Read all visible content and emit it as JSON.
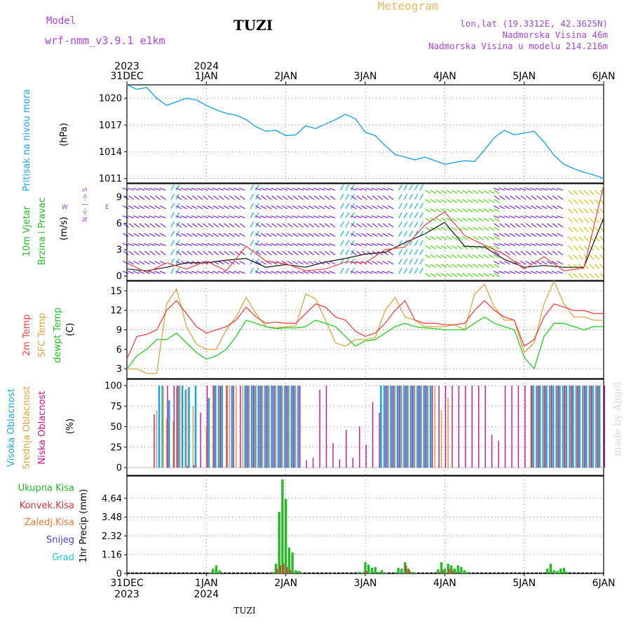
{
  "header": {
    "model_label": "Model",
    "model_name": "wrf-nmm_v3.9.1  e1km",
    "station": "TUZI",
    "meteogram": "Meteogram",
    "lonlat": "lon,lat (19.3312E, 42.3625N)",
    "altitude": "Nadmorska Visina 46m",
    "model_altitude": "Nadmorska Visina u modelu 214.216m",
    "footer_station": "TUZI",
    "watermark": "made by Angel"
  },
  "colors": {
    "pressure": "#1fa3e6",
    "temp2m": "#ee4444",
    "sfc": "#d9a640",
    "dewpt": "#22cc22",
    "high_cloud": "#1fa3e6",
    "mid_cloud": "#d9a640",
    "low_cloud": "#cc1188",
    "precip_total": "#22bb22",
    "precip_conv": "#dd3333",
    "freezing": "#ee7733",
    "snow": "#4444dd",
    "graupel": "#22cccc",
    "header_purple": "#aa44dd",
    "header_orange": "#e8b860"
  },
  "time_axis": {
    "top_labels": [
      {
        "day": "31DEC",
        "year": "2023",
        "t": 0
      },
      {
        "day": "1JAN",
        "year": "2024",
        "t": 24
      },
      {
        "day": "2JAN",
        "year": "",
        "t": 48
      },
      {
        "day": "3JAN",
        "year": "",
        "t": 72
      },
      {
        "day": "4JAN",
        "year": "",
        "t": 96
      },
      {
        "day": "5JAN",
        "year": "",
        "t": 120
      },
      {
        "day": "6JAN",
        "year": "",
        "t": 144
      }
    ],
    "range_hours": [
      0,
      144
    ]
  },
  "panels": {
    "pressure": {
      "ylabel": "Pritisak na nivou mora",
      "unit": "(hPa)",
      "ticks": [
        "1011",
        "1014",
        "1017",
        "1020"
      ]
    },
    "wind": {
      "ylabel1": "10m Vjetar",
      "ylabel2": "Brzina i Pravac",
      "unit": "(m/s)",
      "ticks": [
        "0",
        "3",
        "6",
        "9"
      ],
      "compass_ns": "N <- | -> S",
      "compass_w": "W",
      "compass_e": "E"
    },
    "temp": {
      "label1": "2m Temp",
      "label2": "SFC Temp",
      "label3": "dewpt Temp",
      "unit": "(C)",
      "ticks": [
        "3",
        "6",
        "9",
        "12",
        "15"
      ]
    },
    "cloud": {
      "label1": "Visoka Oblacnost",
      "label2": "Srednja Oblacnost",
      "label3": "Niska Oblacnost",
      "unit": "(%)",
      "ticks": [
        "0",
        "25",
        "50",
        "75",
        "100"
      ]
    },
    "precip": {
      "legend": [
        "Ukupna Kisa",
        "Konvek.Kisa",
        "Zaledj.Kisa",
        "Snijeg",
        "Grad"
      ],
      "ylabel": "1hr Precip (mm)",
      "ticks": [
        "0",
        "1.16",
        "2.32",
        "3.48",
        "4.64"
      ]
    }
  },
  "chart_data": [
    {
      "type": "line",
      "title": "Pritisak na nivou mora",
      "ylabel": "(hPa)",
      "ylim": [
        1010.5,
        1021.5
      ],
      "x_hours": [
        0,
        3,
        6,
        9,
        12,
        15,
        18,
        21,
        24,
        27,
        30,
        33,
        36,
        39,
        42,
        45,
        48,
        51,
        54,
        57,
        60,
        63,
        66,
        69,
        72,
        75,
        78,
        81,
        84,
        87,
        90,
        93,
        96,
        99,
        102,
        105,
        108,
        111,
        114,
        117,
        120,
        123,
        126,
        129,
        132,
        135,
        138,
        141,
        144
      ],
      "series": [
        {
          "values": [
            1021.5,
            1021,
            1021.2,
            1020,
            1019.2,
            1019.6,
            1020,
            1019.8,
            1019.2,
            1018.7,
            1018.3,
            1018.1,
            1017.6,
            1016.8,
            1016.3,
            1016.4,
            1015.8,
            1015.9,
            1016.9,
            1016.6,
            1017.1,
            1017.6,
            1018.2,
            1017.7,
            1016.2,
            1015.8,
            1014.7,
            1013.7,
            1013.4,
            1013.1,
            1013.4,
            1013,
            1012.6,
            1012.8,
            1013,
            1012.9,
            1014.2,
            1015.6,
            1016.4,
            1015.9,
            1016.1,
            1016.3,
            1015.1,
            1013.6,
            1012.6,
            1012.1,
            1011.7,
            1011.4,
            1011
          ]
        }
      ]
    },
    {
      "type": "line",
      "title": "10m Vjetar Brzina i Pravac",
      "ylabel": "(m/s)",
      "ylim": [
        -0.5,
        10.5
      ],
      "x_hours": [
        0,
        6,
        12,
        18,
        24,
        30,
        36,
        42,
        48,
        54,
        60,
        66,
        72,
        78,
        84,
        90,
        96,
        102,
        108,
        114,
        120,
        126,
        132,
        138,
        144
      ],
      "series": [
        {
          "values": [
            0.8,
            0.6,
            1.0,
            1.5,
            1.5,
            1.8,
            2.0,
            1.0,
            1.3,
            1.0,
            1.6,
            2.0,
            2.5,
            2.7,
            3.8,
            4.8,
            6.1,
            3.4,
            3.3,
            1.9,
            1.0,
            1.2,
            1.0,
            1.0,
            6.6
          ]
        },
        {
          "values": [
            1.5,
            0.4,
            1.5,
            0.8,
            1.7,
            0.6,
            3.4,
            1.7,
            1.4,
            0.6,
            0.8,
            1.6,
            1.5,
            3.0,
            3.3,
            5.8,
            7.3,
            4.6,
            3.5,
            2.5,
            0.8,
            2.2,
            0.6,
            0.9,
            10.3
          ]
        }
      ]
    },
    {
      "type": "line",
      "title": "Temperature",
      "ylabel": "(C)",
      "ylim": [
        1.5,
        16.5
      ],
      "x_hours": [
        0,
        3,
        6,
        9,
        12,
        15,
        18,
        21,
        24,
        27,
        30,
        33,
        36,
        39,
        42,
        45,
        48,
        51,
        54,
        57,
        60,
        63,
        66,
        69,
        72,
        75,
        78,
        81,
        84,
        87,
        90,
        93,
        96,
        99,
        102,
        105,
        108,
        111,
        114,
        117,
        120,
        123,
        126,
        129,
        132,
        135,
        138,
        141,
        144
      ],
      "series": [
        {
          "name": "2m Temp",
          "values": [
            4.5,
            8,
            8.3,
            9,
            12,
            13.5,
            11.5,
            9.5,
            8.5,
            9,
            9.5,
            10.5,
            12.5,
            11,
            10,
            10.2,
            10,
            10,
            11.5,
            13,
            12.5,
            11,
            10.5,
            8.8,
            8,
            8.5,
            10,
            12,
            13.5,
            10.5,
            10,
            10,
            9.8,
            9.8,
            10,
            12,
            13.5,
            12,
            11,
            10.5,
            6.5,
            7.5,
            11,
            13,
            12.5,
            12,
            12,
            11.5,
            11.5
          ]
        },
        {
          "name": "SFC Temp",
          "values": [
            3,
            3,
            2.3,
            2.3,
            13,
            15.3,
            9.5,
            6.8,
            6,
            6,
            9,
            11,
            14,
            11.5,
            9.5,
            9.3,
            9.5,
            9.6,
            14.5,
            13.8,
            10.5,
            7,
            6.5,
            7.5,
            7.5,
            7.8,
            12,
            14,
            11,
            10.5,
            9.5,
            9.5,
            9.5,
            9.8,
            9,
            14.5,
            16,
            12.5,
            10.5,
            10.5,
            5.5,
            7,
            13,
            16.5,
            13,
            11,
            11,
            10.5,
            10.5
          ]
        },
        {
          "name": "dewpt Temp",
          "values": [
            3,
            5,
            6,
            7.5,
            7.5,
            8.5,
            7,
            5.5,
            4.5,
            5,
            6,
            8,
            10.5,
            10,
            9.5,
            9.2,
            9.3,
            9.3,
            9.5,
            10.5,
            10,
            9.5,
            8,
            6.5,
            7.3,
            7.5,
            8.5,
            9.5,
            10,
            9.5,
            9.3,
            9.2,
            9,
            9,
            9,
            10,
            11,
            10,
            9.5,
            9,
            4.8,
            3,
            8,
            10,
            10,
            9.5,
            9,
            9.5,
            9.5
          ]
        }
      ]
    },
    {
      "type": "bar",
      "title": "Oblacnost",
      "ylabel": "(%)",
      "ylim": [
        0,
        100
      ],
      "series": [
        {
          "name": "Visoka Oblacnost",
          "x_hours": [
            10,
            11,
            13,
            16,
            17,
            18,
            19,
            21,
            25,
            27,
            28,
            29,
            32,
            36,
            37,
            38,
            39,
            40,
            41,
            42,
            43,
            44,
            45,
            46,
            47,
            48,
            49,
            50,
            51,
            52,
            77,
            78,
            79,
            80,
            81,
            82,
            83,
            84,
            85,
            86,
            87,
            88,
            89,
            90,
            91,
            92,
            123,
            124,
            125,
            126,
            127,
            128,
            129,
            130,
            131,
            132,
            133,
            134,
            135,
            136,
            137,
            138,
            139,
            140,
            141,
            142,
            143
          ],
          "values": [
            100,
            100,
            82,
            100,
            100,
            95,
            98,
            100,
            85,
            100,
            100,
            100,
            100,
            100,
            100,
            100,
            100,
            100,
            100,
            100,
            100,
            100,
            100,
            100,
            100,
            100,
            100,
            100,
            100,
            100,
            100,
            100,
            100,
            100,
            100,
            100,
            100,
            100,
            100,
            100,
            100,
            100,
            100,
            100,
            100,
            100,
            100,
            100,
            100,
            100,
            100,
            100,
            100,
            100,
            100,
            100,
            100,
            100,
            100,
            100,
            100,
            100,
            100,
            100,
            100,
            100,
            100
          ]
        },
        {
          "name": "Srednja Oblacnost",
          "x_hours": [
            9,
            11,
            12,
            14,
            15,
            16,
            18,
            20,
            24,
            26,
            28,
            30,
            31,
            33,
            35,
            37,
            39,
            41,
            43,
            45,
            47,
            49,
            51,
            53,
            79,
            81,
            83,
            85,
            87,
            89,
            91,
            93,
            95,
            97,
            122,
            124,
            126,
            128,
            130,
            132,
            134,
            136,
            138,
            140,
            142
          ],
          "values": [
            70,
            100,
            60,
            57,
            98,
            100,
            96,
            75,
            50,
            100,
            100,
            100,
            100,
            100,
            100,
            100,
            100,
            100,
            100,
            100,
            100,
            100,
            100,
            0,
            100,
            100,
            100,
            100,
            100,
            100,
            100,
            100,
            70,
            85,
            100,
            100,
            100,
            100,
            100,
            100,
            100,
            100,
            100,
            100,
            100
          ]
        },
        {
          "name": "Niska Oblacnost",
          "x_hours": [
            8,
            12,
            14,
            15,
            18,
            20,
            22,
            24,
            26,
            28,
            30,
            32,
            34,
            36,
            38,
            40,
            42,
            44,
            46,
            48,
            50,
            52,
            54,
            56,
            58,
            60,
            62,
            64,
            66,
            68,
            70,
            72,
            74,
            76,
            78,
            80,
            82,
            84,
            86,
            88,
            90,
            92,
            94,
            96,
            98,
            100,
            102,
            104,
            106,
            108,
            110,
            112,
            114,
            116,
            118,
            120,
            122,
            124,
            126,
            128,
            130,
            132,
            134,
            136,
            138,
            140,
            142,
            144
          ],
          "values": [
            65,
            100,
            100,
            100,
            2,
            3,
            67,
            100,
            100,
            100,
            100,
            100,
            100,
            100,
            100,
            100,
            100,
            100,
            100,
            100,
            100,
            100,
            9,
            12,
            95,
            100,
            30,
            10,
            46,
            12,
            50,
            28,
            80,
            67,
            100,
            100,
            100,
            100,
            100,
            100,
            100,
            100,
            100,
            100,
            100,
            100,
            100,
            100,
            100,
            100,
            40,
            33,
            100,
            100,
            100,
            100,
            100,
            100,
            100,
            100,
            100,
            100,
            100,
            100,
            100,
            100,
            100,
            100
          ]
        }
      ]
    },
    {
      "type": "bar",
      "title": "1hr Precip (mm)",
      "ylabel": "1hr Precip (mm)",
      "ylim": [
        0,
        5.8
      ],
      "series": [
        {
          "name": "Ukupna Kisa",
          "x_hours": [
            25,
            26,
            27,
            28,
            44,
            45,
            46,
            47,
            48,
            49,
            50,
            51,
            52,
            53,
            62,
            70,
            71,
            72,
            73,
            74,
            75,
            76,
            77,
            78,
            82,
            83,
            84,
            85,
            86,
            87,
            94,
            95,
            96,
            97,
            98,
            99,
            100,
            101,
            102,
            103,
            127,
            128,
            129,
            130,
            131,
            132,
            133,
            143
          ],
          "values": [
            0.05,
            0.3,
            0.5,
            0.2,
            0.1,
            0.6,
            3.8,
            5.8,
            4.6,
            1.6,
            1.3,
            0.2,
            0.15,
            0.05,
            0.05,
            0.1,
            0.05,
            0.7,
            0.55,
            0.35,
            0.4,
            0.1,
            0.2,
            0.05,
            0.35,
            0.3,
            0.7,
            0.3,
            0.1,
            0.05,
            0.25,
            0.7,
            0.3,
            0.6,
            0.5,
            0.3,
            0.5,
            0.4,
            0.2,
            0.1,
            0.3,
            0.6,
            0.2,
            0.15,
            0.3,
            0.35,
            0.1,
            0.05
          ]
        },
        {
          "name": "Konvek.Kisa",
          "x_hours": [
            45,
            46,
            47,
            48,
            49,
            72,
            84,
            85,
            95,
            97,
            98
          ],
          "values": [
            0.3,
            0.5,
            0.6,
            0.4,
            0.2,
            0.15,
            0.5,
            0.2,
            0.2,
            0.3,
            0.2
          ]
        }
      ]
    }
  ]
}
